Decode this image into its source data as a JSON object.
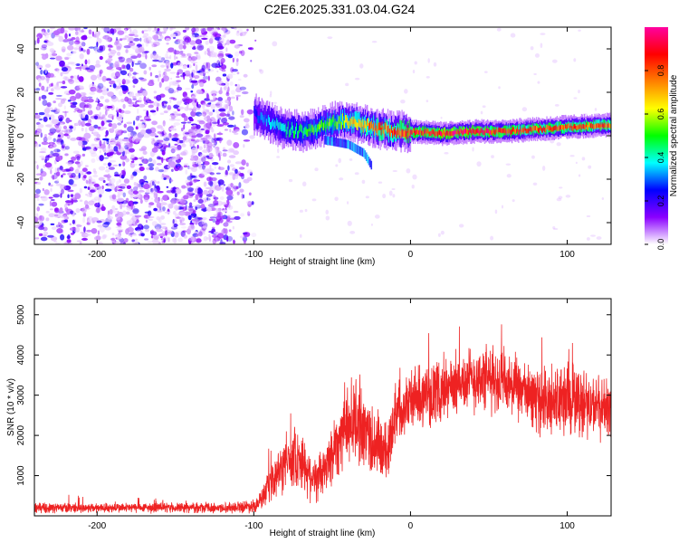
{
  "title": "C2E6.2025.331.03.04.G24",
  "chart_data": [
    {
      "type": "heatmap",
      "xlabel": "Height of straight line (km)",
      "ylabel": "Frequency (Hz)",
      "xlim": [
        -240,
        128
      ],
      "ylim": [
        -50,
        50
      ],
      "xticks": [
        -200,
        -100,
        0,
        100
      ],
      "yticks": [
        -40,
        -20,
        0,
        20,
        40
      ],
      "colorbar": {
        "label": "Normalized spectral amplitude",
        "range": [
          0,
          1
        ],
        "ticks": [
          "0.0",
          "0.2",
          "0.4",
          "0.6",
          "0.8"
        ],
        "colormap": [
          "#ffffff",
          "#8a00ff",
          "#0000ff",
          "#00ffff",
          "#00ff00",
          "#ffff00",
          "#ff8000",
          "#ff0000",
          "#ff00a0"
        ]
      },
      "noise_region_x": [
        -240,
        -98
      ],
      "ridge": [
        {
          "x": -100,
          "y": 10,
          "amp": 0.25
        },
        {
          "x": -90,
          "y": 6,
          "amp": 0.35
        },
        {
          "x": -80,
          "y": 3,
          "amp": 0.4
        },
        {
          "x": -70,
          "y": 2,
          "amp": 0.45
        },
        {
          "x": -60,
          "y": 3,
          "amp": 0.5
        },
        {
          "x": -50,
          "y": 6,
          "amp": 0.55
        },
        {
          "x": -40,
          "y": 7,
          "amp": 0.6
        },
        {
          "x": -30,
          "y": 5,
          "amp": 0.7
        },
        {
          "x": -20,
          "y": 3,
          "amp": 0.75
        },
        {
          "x": -10,
          "y": 2,
          "amp": 0.8
        },
        {
          "x": 0,
          "y": 2,
          "amp": 0.85
        },
        {
          "x": 20,
          "y": 1,
          "amp": 0.9
        },
        {
          "x": 40,
          "y": 2,
          "amp": 0.9
        },
        {
          "x": 60,
          "y": 2,
          "amp": 0.85
        },
        {
          "x": 80,
          "y": 3,
          "amp": 0.8
        },
        {
          "x": 100,
          "y": 4,
          "amp": 0.8
        },
        {
          "x": 128,
          "y": 5,
          "amp": 0.8
        }
      ],
      "side_branch": [
        {
          "x": -55,
          "y": -2,
          "amp": 0.3
        },
        {
          "x": -40,
          "y": -4,
          "amp": 0.3
        },
        {
          "x": -30,
          "y": -8,
          "amp": 0.3
        },
        {
          "x": -25,
          "y": -14,
          "amp": 0.35
        }
      ]
    },
    {
      "type": "line",
      "xlabel": "Height of straight line (km)",
      "ylabel": "SNR (10 * v/v)",
      "xlim": [
        -240,
        128
      ],
      "ylim": [
        0,
        5400
      ],
      "xticks": [
        -200,
        -100,
        0,
        100
      ],
      "yticks": [
        1000,
        2000,
        3000,
        4000,
        5000
      ],
      "color": "#ee2222",
      "series": [
        {
          "x": [
            -240,
            -200,
            -160,
            -120,
            -100,
            -95,
            -90,
            -85,
            -80,
            -75,
            -70,
            -65,
            -60,
            -55,
            -50,
            -45,
            -40,
            -35,
            -30,
            -25,
            -20,
            -15,
            -10,
            0,
            10,
            20,
            30,
            40,
            50,
            60,
            70,
            80,
            90,
            100,
            110,
            120,
            128
          ],
          "y": [
            200,
            200,
            200,
            200,
            250,
            400,
            700,
            1000,
            1300,
            1500,
            1400,
            1100,
            900,
            1100,
            1600,
            2000,
            2300,
            2400,
            2200,
            1900,
            1700,
            1500,
            2600,
            2900,
            3000,
            3100,
            3300,
            3400,
            3400,
            3300,
            3100,
            2900,
            2800,
            2900,
            2800,
            2700,
            2700
          ],
          "noise_amplitude": [
            150,
            150,
            150,
            150,
            200,
            300,
            500,
            700,
            800,
            900,
            900,
            800,
            700,
            800,
            1000,
            1100,
            1200,
            1300,
            1200,
            1200,
            1100,
            900,
            900,
            900,
            900,
            900,
            900,
            1000,
            1000,
            1000,
            900,
            900,
            1100,
            1200,
            1000,
            900,
            900
          ]
        }
      ]
    }
  ]
}
